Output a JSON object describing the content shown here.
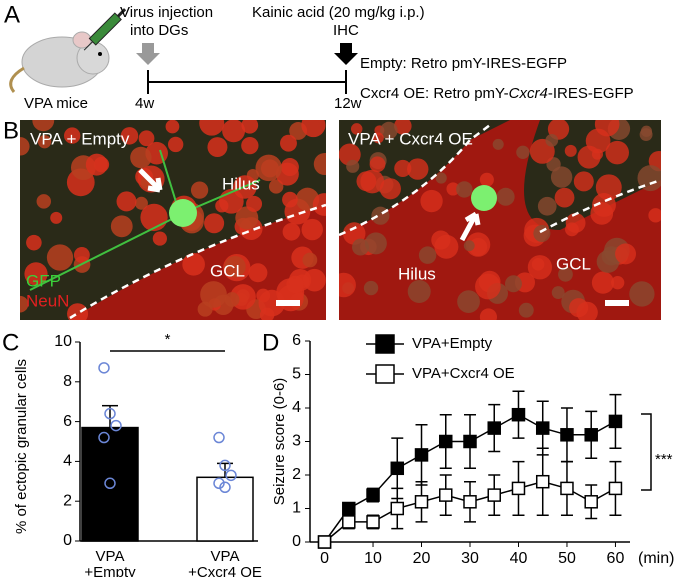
{
  "panel_a": {
    "label": "A",
    "mouse_label": "VPA mice",
    "injection_lines": [
      "Virus injection",
      "into DGs"
    ],
    "kainic": "Kainic acid (20 mg/kg i.p.)",
    "ihc": "IHC",
    "start": "4w",
    "end": "12w",
    "empty_line": "Empty: Retro pmY-IRES-EGFP",
    "oe_parts": [
      "Cxcr4 OE: Retro pmY-",
      "Cxcr4",
      "-IRES-EGFP"
    ]
  },
  "panel_b": {
    "label": "B",
    "left": {
      "title": "VPA + Empty",
      "hilus": "Hilus",
      "gcl": "GCL",
      "gfp": "GFP",
      "neun": "NeuN"
    },
    "right": {
      "title": "VPA + Cxcr4 OE",
      "hilus": "Hilus",
      "gcl": "GCL"
    }
  },
  "chart_data": [
    {
      "type": "bar",
      "label": "C",
      "ylabel": "% of ectopic granular cells",
      "categories": [
        [
          "VPA",
          "+Empty"
        ],
        [
          "VPA",
          "+Cxcr4 OE"
        ]
      ],
      "values": [
        5.7,
        3.2
      ],
      "errors": [
        1.1,
        0.7
      ],
      "points": [
        [
          8.7,
          6.4,
          5.8,
          5.2,
          2.9
        ],
        [
          5.2,
          3.8,
          3.3,
          2.9,
          2.7
        ]
      ],
      "colors": [
        "#000000",
        "#ffffff"
      ],
      "point_color": "#6b86d6",
      "ylim": [
        0,
        10
      ],
      "yticks": [
        0,
        2,
        4,
        6,
        8,
        10
      ],
      "annotation": "*"
    },
    {
      "type": "line",
      "label": "D",
      "ylabel": "Seizure score (0-6)",
      "xlabel": "(min)",
      "x": [
        0,
        5,
        10,
        15,
        20,
        25,
        30,
        35,
        40,
        45,
        50,
        55,
        60
      ],
      "series": [
        {
          "name": "VPA+Empty",
          "color": "#000000",
          "values": [
            0,
            1.0,
            1.4,
            2.2,
            2.6,
            3.0,
            3.0,
            3.4,
            3.8,
            3.4,
            3.2,
            3.2,
            3.6
          ],
          "errors": [
            0,
            0.1,
            0.2,
            0.9,
            0.9,
            0.8,
            0.8,
            0.7,
            0.7,
            0.8,
            0.8,
            0.7,
            0.8
          ]
        },
        {
          "name": "VPA+Cxcr4 OE",
          "color": "#ffffff",
          "values": [
            0,
            0.6,
            0.6,
            1.0,
            1.2,
            1.4,
            1.2,
            1.4,
            1.6,
            1.8,
            1.6,
            1.2,
            1.6
          ],
          "errors": [
            0,
            0.2,
            0.2,
            0.6,
            0.6,
            0.6,
            0.6,
            0.6,
            0.8,
            1.0,
            0.8,
            0.5,
            0.8
          ]
        }
      ],
      "xlim": [
        -3,
        63
      ],
      "xticks": [
        0,
        10,
        20,
        30,
        40,
        50,
        60
      ],
      "ylim": [
        0,
        6
      ],
      "yticks": [
        0,
        1,
        2,
        3,
        4,
        5,
        6
      ],
      "annotation": "***"
    }
  ]
}
